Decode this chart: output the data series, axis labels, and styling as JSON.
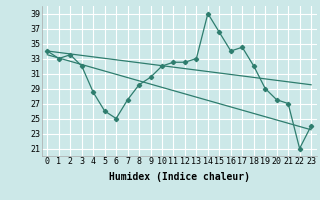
{
  "xlabel": "Humidex (Indice chaleur)",
  "background_color": "#cce8e8",
  "grid_color": "#ffffff",
  "line_color": "#2e7d6e",
  "x_ticks": [
    0,
    1,
    2,
    3,
    4,
    5,
    6,
    7,
    8,
    9,
    10,
    11,
    12,
    13,
    14,
    15,
    16,
    17,
    18,
    19,
    20,
    21,
    22,
    23
  ],
  "y_ticks": [
    21,
    23,
    25,
    27,
    29,
    31,
    33,
    35,
    37,
    39
  ],
  "xlim": [
    -0.5,
    23.5
  ],
  "ylim": [
    20.0,
    40.0
  ],
  "series1_x": [
    0,
    1,
    2,
    3,
    4,
    5,
    6,
    7,
    8,
    9,
    10,
    11,
    12,
    13,
    14,
    15,
    16,
    17,
    18,
    19,
    20,
    21,
    22,
    23
  ],
  "series1_y": [
    34.0,
    33.0,
    33.5,
    32.0,
    28.5,
    26.0,
    25.0,
    27.5,
    29.5,
    30.5,
    32.0,
    32.5,
    32.5,
    33.0,
    39.0,
    36.5,
    34.0,
    34.5,
    32.0,
    29.0,
    27.5,
    27.0,
    21.0,
    24.0
  ],
  "series2_x": [
    0,
    23
  ],
  "series2_y": [
    34.0,
    29.5
  ],
  "series3_x": [
    0,
    23
  ],
  "series3_y": [
    33.5,
    23.5
  ],
  "fontsize_label": 7,
  "fontsize_tick": 6
}
